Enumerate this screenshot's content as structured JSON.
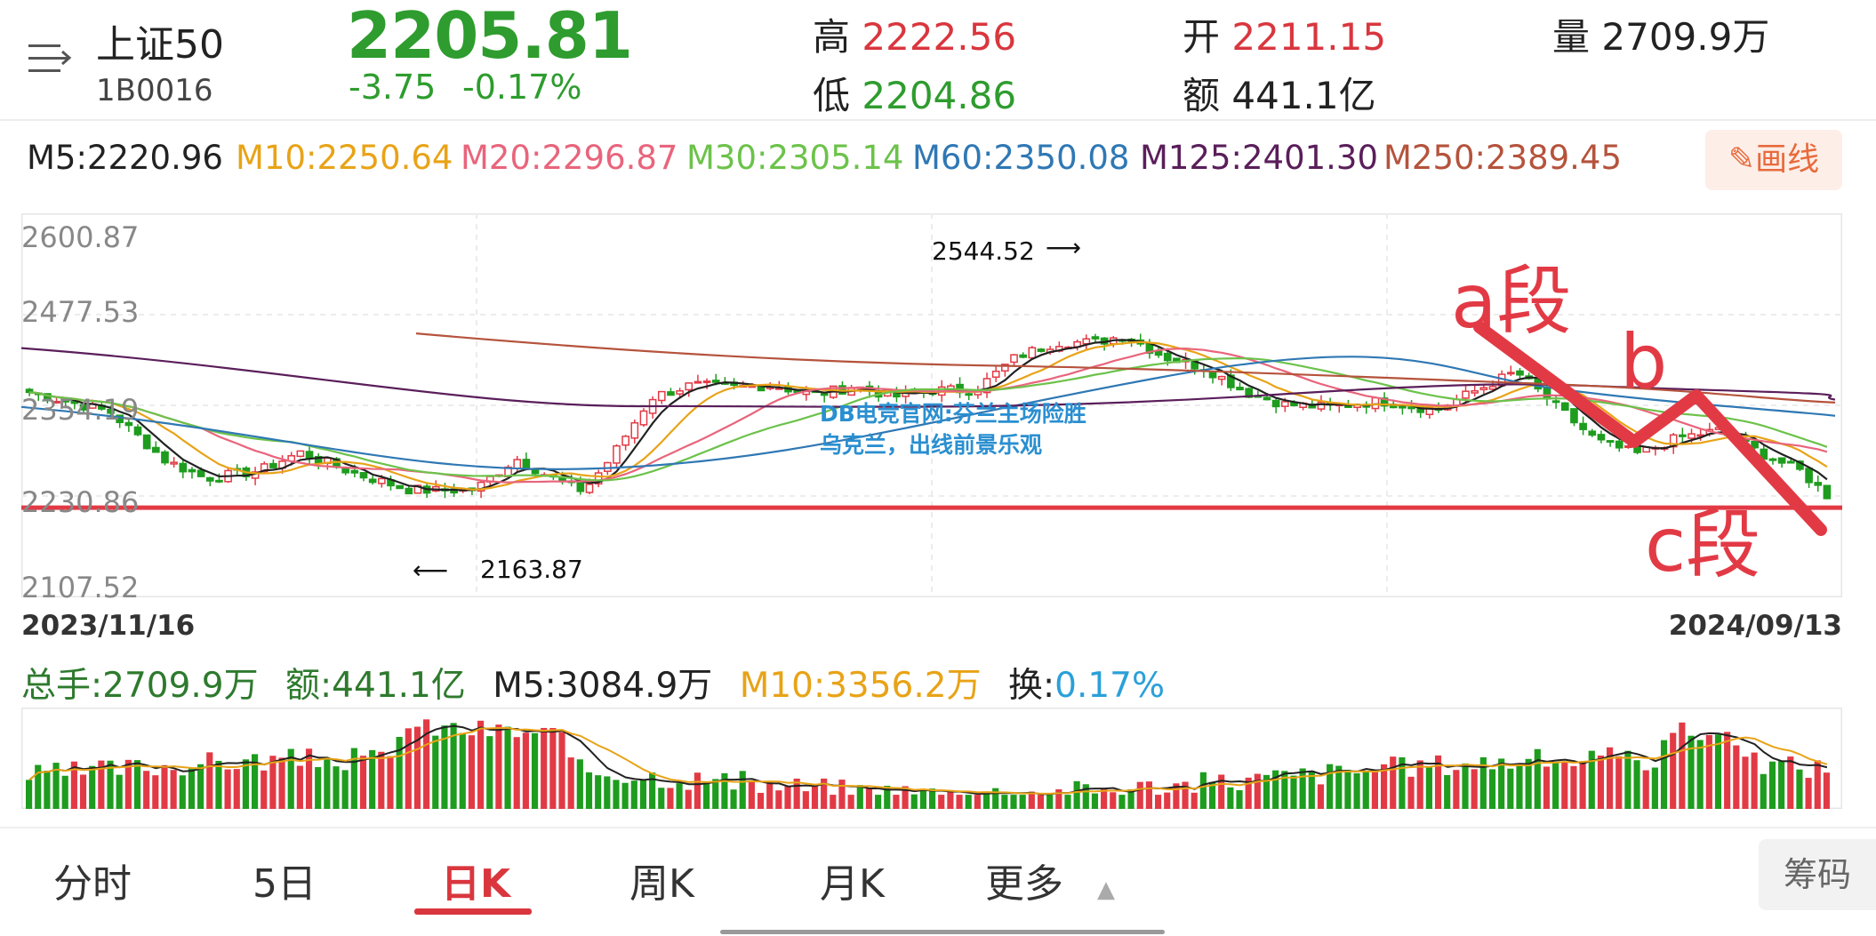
{
  "header": {
    "name": "上证50",
    "code": "1B0016",
    "price": "2205.81",
    "change": "-3.75",
    "change_pct": "-0.17%",
    "high_label": "高",
    "high": "2222.56",
    "low_label": "低",
    "low": "2204.86",
    "open_label": "开",
    "open": "2211.15",
    "amount_label": "额",
    "amount": "441.1亿",
    "volume_label": "量",
    "volume": "2709.9万"
  },
  "ma_line": [
    {
      "label": "M5:2220.96",
      "color": "#222222"
    },
    {
      "label": "M10:2250.64",
      "color": "#e8a317"
    },
    {
      "label": "M20:2296.87",
      "color": "#e8657c"
    },
    {
      "label": "M30:2305.14",
      "color": "#6cc24a"
    },
    {
      "label": "M60:2350.08",
      "color": "#2f78b4"
    },
    {
      "label": "M125:2401.30",
      "color": "#5a1e5a"
    },
    {
      "label": "M250:2389.45",
      "color": "#b5533c"
    }
  ],
  "draw_button": "画线",
  "chart": {
    "y_labels": [
      "2600.87",
      "2477.53",
      "2354.19",
      "2230.86",
      "2107.52"
    ],
    "y_min": 2107.52,
    "y_max": 2600.87,
    "start_date": "2023/11/16",
    "end_date": "2024/09/13",
    "high_annotation": "2544.52",
    "low_annotation": "2163.87",
    "support_level": 2215,
    "segments": [
      "a段",
      "b",
      "c段"
    ],
    "watermark": "DB电竞官网:芬兰主场险胜乌克兰，出线前景乐观"
  },
  "volume": {
    "total_label": "总手:",
    "total": "2709.9万",
    "amount_label": "额:",
    "amount": "441.1亿",
    "m5_label": "M5:3084.9万",
    "m10_label": "M10:3356.2万",
    "turnover_label": "换:",
    "turnover": "0.17%"
  },
  "tabs": [
    "分时",
    "5日",
    "日K",
    "周K",
    "月K",
    "更多"
  ],
  "active_tab": "日K",
  "chouma": "筹码",
  "colors": {
    "up": "#e23a45",
    "down": "#1e9c1e",
    "support": "#e23a45"
  }
}
